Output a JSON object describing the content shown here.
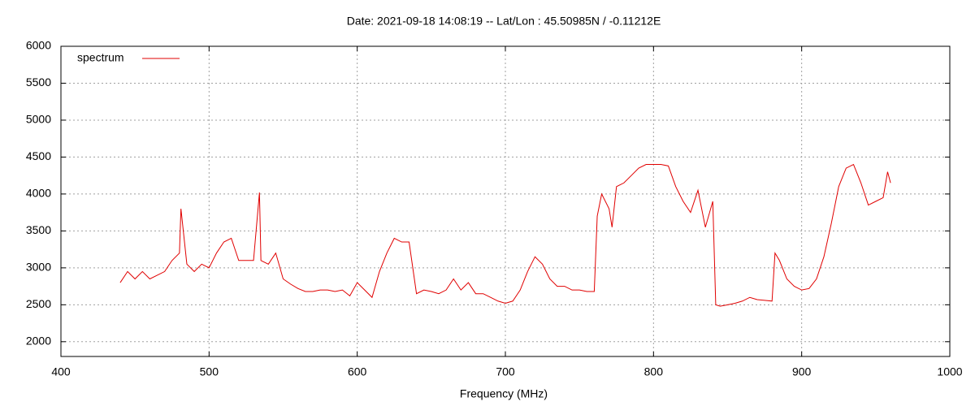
{
  "chart_data": {
    "type": "line",
    "title": "Date: 2021-09-18 14:08:19  --  Lat/Lon : 45.50985N / -0.11212E",
    "x_label": "Frequency (MHz)",
    "xlim": [
      400,
      1000
    ],
    "xticks": [
      400,
      500,
      600,
      700,
      800,
      900,
      1000
    ],
    "ylim": [
      1800,
      6000
    ],
    "yticks": [
      2000,
      2500,
      3000,
      3500,
      4000,
      4500,
      5000,
      5500,
      6000
    ],
    "grid": true,
    "legend": "top-left",
    "series": [
      {
        "name": "spectrum",
        "color": "#e00000",
        "x": [
          440,
          445,
          450,
          455,
          460,
          465,
          470,
          475,
          480,
          481,
          485,
          490,
          495,
          500,
          505,
          510,
          515,
          520,
          525,
          530,
          534,
          535,
          540,
          545,
          550,
          555,
          560,
          565,
          570,
          575,
          580,
          585,
          590,
          595,
          600,
          605,
          610,
          615,
          620,
          625,
          630,
          635,
          640,
          645,
          650,
          655,
          660,
          665,
          670,
          675,
          680,
          685,
          690,
          695,
          700,
          705,
          710,
          715,
          720,
          725,
          730,
          735,
          740,
          745,
          750,
          755,
          760,
          762,
          765,
          770,
          772,
          775,
          780,
          785,
          790,
          795,
          800,
          805,
          810,
          815,
          820,
          825,
          830,
          835,
          840,
          842,
          845,
          850,
          855,
          860,
          865,
          870,
          875,
          880,
          882,
          885,
          890,
          895,
          900,
          905,
          910,
          915,
          920,
          925,
          930,
          935,
          940,
          945,
          950,
          955,
          958,
          960
        ],
        "values": [
          2800,
          2950,
          2850,
          2950,
          2850,
          2900,
          2950,
          3100,
          3200,
          3800,
          3050,
          2950,
          3050,
          3000,
          3200,
          3350,
          3400,
          3100,
          3100,
          3100,
          4020,
          3100,
          3050,
          3200,
          2850,
          2780,
          2720,
          2680,
          2680,
          2700,
          2700,
          2680,
          2700,
          2620,
          2800,
          2700,
          2600,
          2950,
          3200,
          3400,
          3350,
          3350,
          2650,
          2700,
          2680,
          2650,
          2700,
          2850,
          2700,
          2800,
          2650,
          2650,
          2600,
          2550,
          2520,
          2550,
          2700,
          2950,
          3150,
          3050,
          2850,
          2750,
          2750,
          2700,
          2700,
          2680,
          2680,
          3700,
          4000,
          3800,
          3550,
          4100,
          4150,
          4250,
          4350,
          4400,
          4400,
          4400,
          4380,
          4100,
          3900,
          3750,
          4050,
          3550,
          3900,
          2500,
          2480,
          2500,
          2520,
          2550,
          2600,
          2570,
          2560,
          2550,
          3200,
          3100,
          2850,
          2750,
          2700,
          2720,
          2850,
          3150,
          3600,
          4100,
          4350,
          4400,
          4150,
          3850,
          3900,
          3950,
          4300,
          4150
        ]
      }
    ]
  }
}
